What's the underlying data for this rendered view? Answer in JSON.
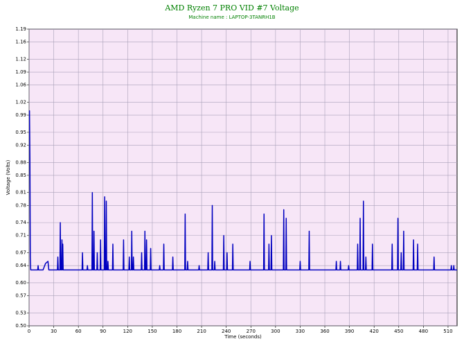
{
  "chart_data": {
    "type": "line",
    "title": "AMD Ryzen 7 PRO VID #7 Voltage",
    "subtitle": "Machine name : LAPTOP-3TANRH1B",
    "x_label": "Time (seconds)",
    "y_label": "Voltage (Volts)",
    "xlim": [
      0,
      521
    ],
    "ylim": [
      0.5,
      1.19
    ],
    "xticks": [
      0,
      30,
      60,
      90,
      120,
      150,
      180,
      210,
      240,
      270,
      300,
      330,
      360,
      390,
      420,
      450,
      480,
      510
    ],
    "yticks": [
      {
        "value": 0.5,
        "label": "0.50"
      },
      0.53,
      0.57,
      {
        "value": 0.6,
        "label": "0.60"
      },
      0.64,
      0.67,
      0.71,
      0.74,
      0.78,
      0.81,
      0.85,
      0.88,
      0.92,
      0.95,
      0.99,
      1.02,
      1.06,
      1.09,
      1.12,
      1.16,
      1.19
    ],
    "grid": true,
    "series": [
      {
        "color": "#0000c0",
        "x": [
          0,
          0.5,
          1,
          1.5,
          2,
          10.5,
          11,
          11.5,
          17,
          20,
          23,
          24,
          34.5,
          35,
          35.5,
          37.5,
          38,
          38.5,
          39.5,
          40,
          40.5,
          40.8,
          41,
          41.5,
          64.5,
          65,
          65.5,
          70.5,
          71,
          71.5,
          76.5,
          77,
          77.5,
          78.5,
          79,
          79.5,
          82.5,
          83,
          83.5,
          86.5,
          87,
          87.5,
          91.5,
          92,
          92.5,
          93.5,
          94,
          94.5,
          95.5,
          96,
          96.5,
          101.5,
          102,
          102.5,
          114.5,
          115,
          115.5,
          121.5,
          122,
          122.5,
          124.5,
          125,
          125.5,
          126.5,
          127,
          127.5,
          136.5,
          137,
          137.5,
          140.5,
          141,
          141.5,
          142.5,
          143,
          143.5,
          147.5,
          148,
          148.5,
          158.5,
          159,
          159.5,
          163.5,
          164,
          164.5,
          174.5,
          175,
          175.5,
          189.5,
          190,
          190.5,
          192.5,
          193,
          193.5,
          206.5,
          207,
          207.5,
          217.5,
          218,
          218.5,
          222.5,
          223,
          223.5,
          225.5,
          226,
          226.5,
          236.5,
          237,
          237.5,
          240.5,
          241,
          241.5,
          247.5,
          248,
          248.5,
          268.5,
          269,
          269.5,
          285.5,
          286,
          286.5,
          291.5,
          292,
          292.5,
          294.5,
          295,
          295.5,
          309.5,
          310,
          310.5,
          312.5,
          313,
          313.5,
          329.5,
          330,
          330.5,
          340.5,
          341,
          341.5,
          373.5,
          374,
          374.5,
          378.5,
          379,
          379.5,
          388.5,
          389,
          389.5,
          399.5,
          400,
          400.5,
          402.5,
          403,
          403.5,
          406.5,
          407,
          407.5,
          409.5,
          410,
          410.5,
          417.5,
          418,
          418.5,
          441.5,
          442,
          442.5,
          448.5,
          449,
          449.5,
          452.5,
          453,
          453.5,
          455.5,
          456,
          456.5,
          467.5,
          468,
          468.5,
          472.5,
          473,
          473.5,
          492.5,
          493,
          493.5,
          513.5,
          514,
          514.5,
          516.5,
          517,
          517.5,
          521
        ],
        "values": [
          1.0,
          1.0,
          0.89,
          0.66,
          0.63,
          0.63,
          0.64,
          0.63,
          0.63,
          0.645,
          0.65,
          0.63,
          0.63,
          0.66,
          0.63,
          0.63,
          0.74,
          0.63,
          0.63,
          0.7,
          0.63,
          0.63,
          0.69,
          0.63,
          0.63,
          0.67,
          0.63,
          0.63,
          0.64,
          0.63,
          0.63,
          0.81,
          0.63,
          0.63,
          0.72,
          0.63,
          0.63,
          0.67,
          0.63,
          0.63,
          0.7,
          0.63,
          0.63,
          0.8,
          0.63,
          0.63,
          0.79,
          0.63,
          0.63,
          0.65,
          0.63,
          0.63,
          0.69,
          0.63,
          0.63,
          0.7,
          0.63,
          0.63,
          0.66,
          0.63,
          0.63,
          0.72,
          0.63,
          0.63,
          0.66,
          0.63,
          0.63,
          0.67,
          0.63,
          0.63,
          0.72,
          0.63,
          0.63,
          0.7,
          0.63,
          0.63,
          0.68,
          0.63,
          0.63,
          0.64,
          0.63,
          0.63,
          0.69,
          0.63,
          0.63,
          0.66,
          0.63,
          0.63,
          0.76,
          0.63,
          0.63,
          0.65,
          0.63,
          0.63,
          0.64,
          0.63,
          0.63,
          0.67,
          0.63,
          0.63,
          0.78,
          0.63,
          0.63,
          0.65,
          0.63,
          0.63,
          0.71,
          0.63,
          0.63,
          0.67,
          0.63,
          0.63,
          0.69,
          0.63,
          0.63,
          0.65,
          0.63,
          0.63,
          0.76,
          0.63,
          0.63,
          0.69,
          0.63,
          0.63,
          0.71,
          0.63,
          0.63,
          0.77,
          0.63,
          0.63,
          0.75,
          0.63,
          0.63,
          0.65,
          0.63,
          0.63,
          0.72,
          0.63,
          0.63,
          0.65,
          0.63,
          0.63,
          0.65,
          0.63,
          0.63,
          0.64,
          0.63,
          0.63,
          0.69,
          0.63,
          0.63,
          0.75,
          0.63,
          0.63,
          0.79,
          0.63,
          0.63,
          0.66,
          0.63,
          0.63,
          0.69,
          0.63,
          0.63,
          0.69,
          0.63,
          0.63,
          0.75,
          0.63,
          0.63,
          0.67,
          0.63,
          0.63,
          0.72,
          0.63,
          0.63,
          0.7,
          0.63,
          0.63,
          0.69,
          0.63,
          0.63,
          0.66,
          0.63,
          0.63,
          0.64,
          0.63,
          0.63,
          0.64,
          0.63,
          0.63
        ]
      }
    ]
  }
}
